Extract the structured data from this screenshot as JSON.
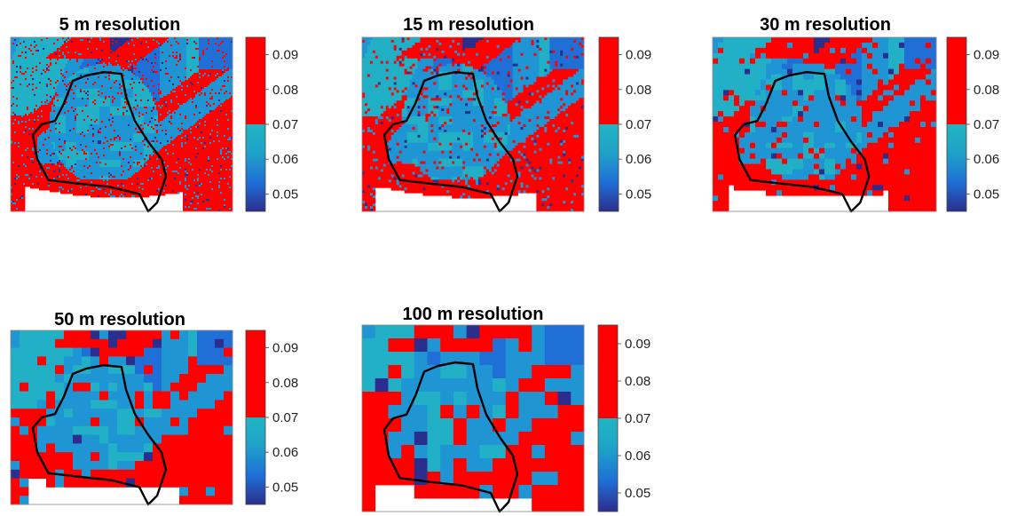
{
  "figure": {
    "panels": [
      {
        "title": "5 m resolution"
      },
      {
        "title": "15 m resolution"
      },
      {
        "title": "30 m resolution"
      },
      {
        "title": "50 m resolution"
      },
      {
        "title": "100 m resolution"
      }
    ]
  },
  "chart_data": [
    {
      "type": "heatmap",
      "title": "5 m resolution",
      "resolution_m": 5,
      "colorbar": {
        "ticks": [
          "0.05",
          "0.06",
          "0.07",
          "0.08",
          "0.09"
        ],
        "range": [
          0.045,
          0.095
        ],
        "threshold": 0.07
      },
      "colors": {
        "high": "#ff0000",
        "low": [
          "#2b2e8c",
          "#1f6fd6",
          "#1fa2c9",
          "#21b5c2"
        ],
        "outline": "#000000"
      }
    },
    {
      "type": "heatmap",
      "title": "15 m resolution",
      "resolution_m": 15,
      "colorbar": {
        "ticks": [
          "0.05",
          "0.06",
          "0.07",
          "0.08",
          "0.09"
        ],
        "range": [
          0.045,
          0.095
        ],
        "threshold": 0.07
      },
      "colors": {
        "high": "#ff0000",
        "low": [
          "#2b2e8c",
          "#1f6fd6",
          "#1fa2c9",
          "#21b5c2"
        ],
        "outline": "#000000"
      }
    },
    {
      "type": "heatmap",
      "title": "30 m resolution",
      "resolution_m": 30,
      "colorbar": {
        "ticks": [
          "0.05",
          "0.06",
          "0.07",
          "0.08",
          "0.09"
        ],
        "range": [
          0.045,
          0.095
        ],
        "threshold": 0.07
      },
      "colors": {
        "high": "#ff0000",
        "low": [
          "#2b2e8c",
          "#1f6fd6",
          "#1fa2c9",
          "#21b5c2"
        ],
        "outline": "#000000"
      }
    },
    {
      "type": "heatmap",
      "title": "50 m resolution",
      "resolution_m": 50,
      "colorbar": {
        "ticks": [
          "0.05",
          "0.06",
          "0.07",
          "0.08",
          "0.09"
        ],
        "range": [
          0.045,
          0.095
        ],
        "threshold": 0.07
      },
      "colors": {
        "high": "#ff0000",
        "low": [
          "#2b2e8c",
          "#1f6fd6",
          "#1fa2c9",
          "#21b5c2"
        ],
        "outline": "#000000"
      }
    },
    {
      "type": "heatmap",
      "title": "100 m resolution",
      "resolution_m": 100,
      "colorbar": {
        "ticks": [
          "0.05",
          "0.06",
          "0.07",
          "0.08",
          "0.09"
        ],
        "range": [
          0.045,
          0.095
        ],
        "threshold": 0.07
      },
      "colors": {
        "high": "#ff0000",
        "low": [
          "#2b2e8c",
          "#1f6fd6",
          "#1fa2c9",
          "#21b5c2"
        ],
        "outline": "#000000"
      }
    }
  ]
}
